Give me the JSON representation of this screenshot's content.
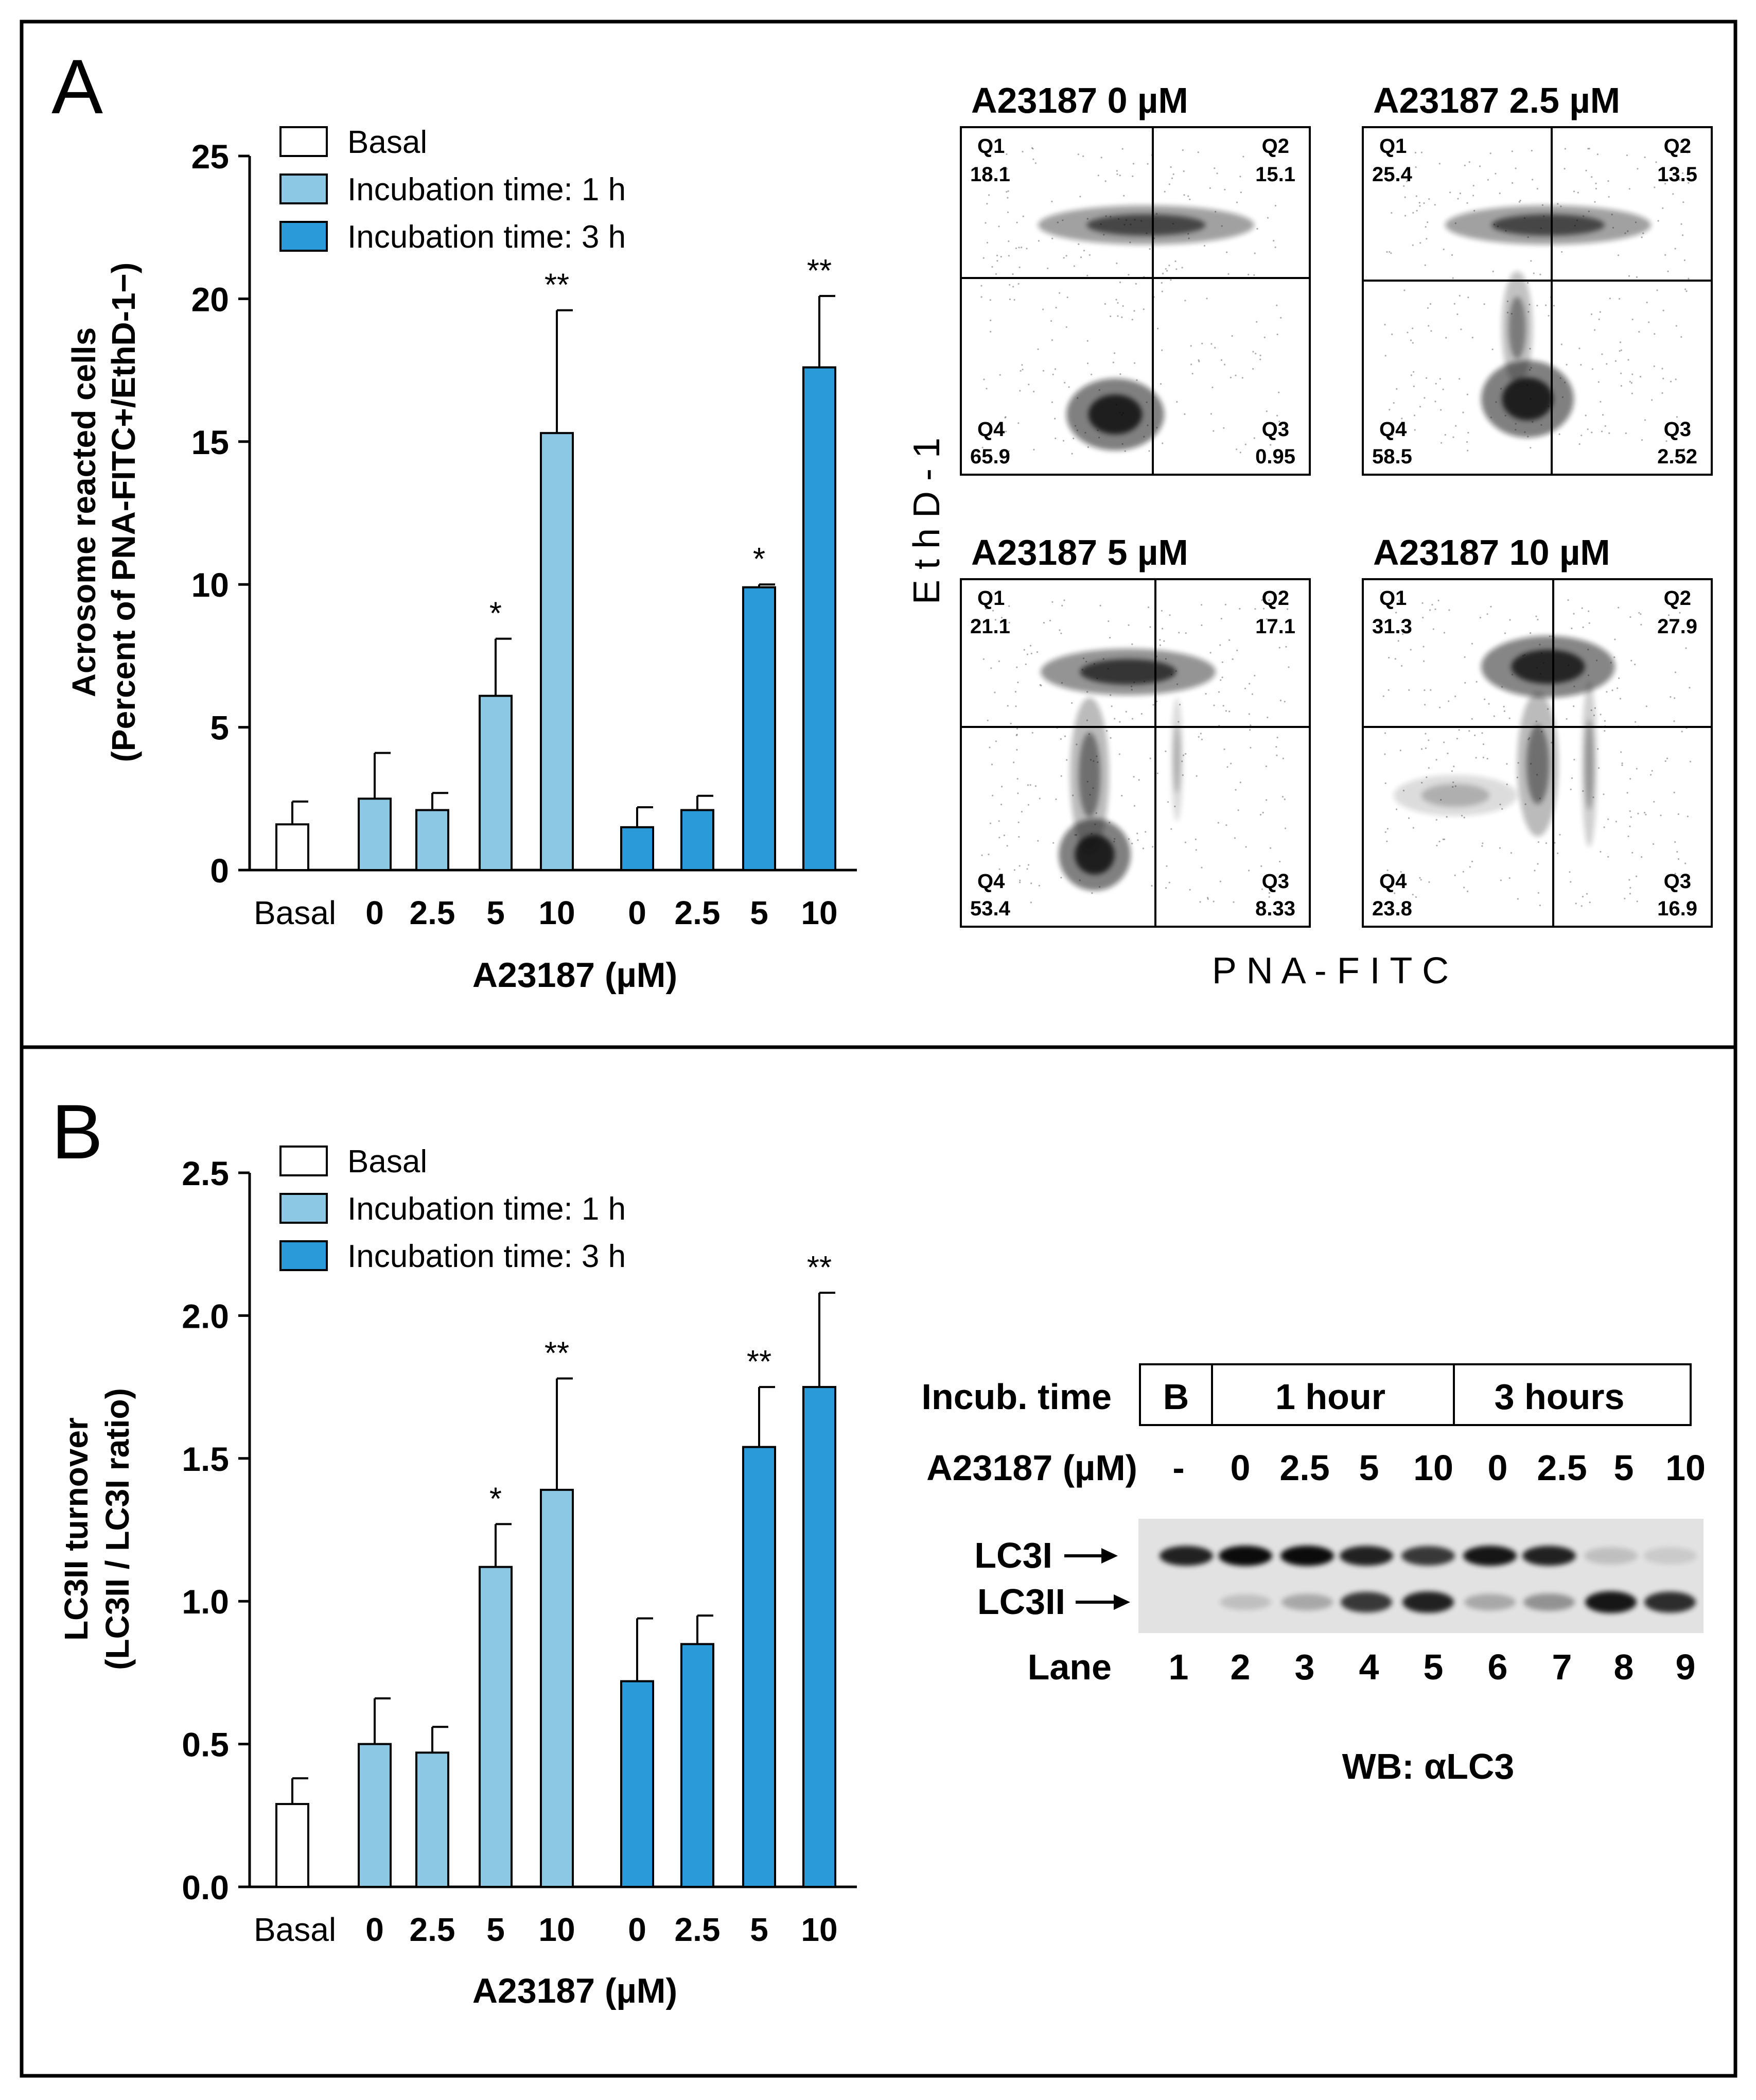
{
  "colors": {
    "basal": "#ffffff",
    "incubation_1h": "#8cc7e3",
    "incubation_3h": "#2a9ad8",
    "frame": "#000000",
    "dot": "#111111"
  },
  "panel_a": {
    "label": "A",
    "bar_chart": {
      "ylabel_line1": "Acrosome reacted cells",
      "ylabel_line2": "(Percent of PNA-FITC+/EthD-1−)",
      "xlabel": "A23187 (µM)",
      "yticks": [
        "0",
        "5",
        "10",
        "15",
        "20",
        "25"
      ],
      "legend": [
        "Basal",
        "Incubation time: 1 h",
        "Incubation time: 3 h"
      ],
      "categories": [
        "Basal",
        "0",
        "2.5",
        "5",
        "10",
        "0",
        "2.5",
        "5",
        "10"
      ]
    },
    "flow": {
      "xaxis_label": "P N A - F I T C",
      "yaxis_label": "E t h D - 1",
      "plots": [
        {
          "title": "A23187 0 µM",
          "q1": "Q1",
          "q1v": "18.1",
          "q2": "Q2",
          "q2v": "15.1",
          "q3": "Q3",
          "q3v": "0.95",
          "q4": "Q4",
          "q4v": "65.9"
        },
        {
          "title": "A23187 2.5 µM",
          "q1": "Q1",
          "q1v": "25.4",
          "q2": "Q2",
          "q2v": "13.5",
          "q3": "Q3",
          "q3v": "2.52",
          "q4": "Q4",
          "q4v": "58.5"
        },
        {
          "title": "A23187 5 µM",
          "q1": "Q1",
          "q1v": "21.1",
          "q2": "Q2",
          "q2v": "17.1",
          "q3": "Q3",
          "q3v": "8.33",
          "q4": "Q4",
          "q4v": "53.4"
        },
        {
          "title": "A23187 10 µM",
          "q1": "Q1",
          "q1v": "31.3",
          "q2": "Q2",
          "q2v": "27.9",
          "q3": "Q3",
          "q3v": "16.9",
          "q4": "Q4",
          "q4v": "23.8"
        }
      ]
    }
  },
  "panel_b": {
    "label": "B",
    "bar_chart": {
      "ylabel_line1": "LC3II turnover",
      "ylabel_line2": "(LC3II / LC3I ratio)",
      "xlabel": "A23187 (µM)",
      "yticks": [
        "0.0",
        "0.5",
        "1.0",
        "1.5",
        "2.0",
        "2.5"
      ],
      "legend": [
        "Basal",
        "Incubation time: 1 h",
        "Incubation time: 3 h"
      ],
      "categories": [
        "Basal",
        "0",
        "2.5",
        "5",
        "10",
        "0",
        "2.5",
        "5",
        "10"
      ]
    },
    "western_blot": {
      "incub_time_label": "Incub. time",
      "group_b": "B",
      "group_1h": "1 hour",
      "group_3h": "3 hours",
      "a23187_label": "A23187 (µM)",
      "doses": [
        "-",
        "0",
        "2.5",
        "5",
        "10",
        "0",
        "2.5",
        "5",
        "10"
      ],
      "band_lc3i": "LC3I",
      "band_lc3ii": "LC3II",
      "lane_label": "Lane",
      "lanes": [
        "1",
        "2",
        "3",
        "4",
        "5",
        "6",
        "7",
        "8",
        "9"
      ],
      "lc3i_intensity": [
        0.85,
        0.95,
        0.95,
        0.85,
        0.75,
        0.9,
        0.85,
        0.15,
        0.1
      ],
      "lc3ii_intensity": [
        0.0,
        0.15,
        0.25,
        0.75,
        0.85,
        0.25,
        0.35,
        0.9,
        0.8
      ],
      "wb_caption": "WB: αLC3"
    }
  },
  "chart_data": [
    {
      "type": "bar",
      "categories": [
        "Basal",
        "0",
        "2.5",
        "5",
        "10",
        "0",
        "2.5",
        "5",
        "10"
      ],
      "groups": [
        "basal",
        "1h",
        "1h",
        "1h",
        "1h",
        "3h",
        "3h",
        "3h",
        "3h"
      ],
      "values": [
        1.6,
        2.5,
        2.1,
        6.1,
        15.3,
        1.5,
        2.1,
        9.9,
        17.6
      ],
      "errors": [
        0.8,
        1.6,
        0.6,
        2.0,
        4.3,
        0.7,
        0.5,
        0.1,
        2.5
      ],
      "annotations": [
        "",
        "",
        "",
        "*",
        "**",
        "",
        "",
        "*",
        "**"
      ],
      "xlabel": "A23187 (µM)",
      "ylabel": "Acrosome reacted cells (Percent of PNA-FITC+/EthD-1−)",
      "ylim": [
        0,
        25
      ],
      "legend_position": "top-left"
    },
    {
      "type": "bar",
      "categories": [
        "Basal",
        "0",
        "2.5",
        "5",
        "10",
        "0",
        "2.5",
        "5",
        "10"
      ],
      "groups": [
        "basal",
        "1h",
        "1h",
        "1h",
        "1h",
        "3h",
        "3h",
        "3h",
        "3h"
      ],
      "values": [
        0.29,
        0.5,
        0.47,
        1.12,
        1.39,
        0.72,
        0.85,
        1.54,
        1.75
      ],
      "errors": [
        0.09,
        0.16,
        0.09,
        0.15,
        0.39,
        0.22,
        0.1,
        0.21,
        0.33
      ],
      "annotations": [
        "",
        "",
        "",
        "*",
        "**",
        "",
        "",
        "**",
        "**"
      ],
      "xlabel": "A23187 (µM)",
      "ylabel": "LC3II turnover (LC3II / LC3I ratio)",
      "ylim": [
        0,
        2.5
      ],
      "legend_position": "top-left"
    }
  ]
}
